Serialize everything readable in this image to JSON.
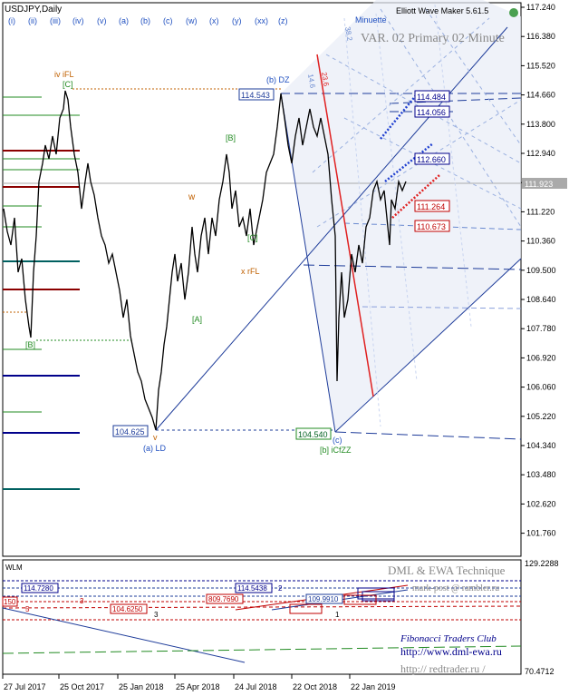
{
  "symbol_label": "USDJPY,Daily",
  "indicator_title": "Elliott Wave Maker 5.61.5",
  "var_label": "VAR. 02 Primary 02 Minute",
  "minuette_label": "Minuette",
  "wave_degree_buttons": [
    "(i)",
    "(ii)",
    "(iii)",
    "(iv)",
    "(v)",
    "(a)",
    "(b)",
    "(c)",
    "(w)",
    "(x)",
    "(y)",
    "(xx)",
    "(z)"
  ],
  "price_axis": [
    "117.240",
    "116.380",
    "115.520",
    "114.660",
    "113.800",
    "112.940",
    "112.080",
    "111.220",
    "110.360",
    "109.500",
    "108.640",
    "107.780",
    "106.920",
    "106.060",
    "105.220",
    "104.340",
    "103.480",
    "102.620",
    "101.760"
  ],
  "current_price": "111.923",
  "date_axis": [
    "27 Jul 2017",
    "25 Oct 2017",
    "25 Jan 2018",
    "25 Apr 2018",
    "24 Jul 2018",
    "22 Oct 2018",
    "22 Jan 2019"
  ],
  "wave_labels": {
    "iv_ifl": "iv iFL",
    "c_top": "[C]",
    "b_dz": "(b) DZ",
    "w": "w",
    "b_green": "[B]",
    "c_green": "[C]",
    "x_rfl": "x rFL",
    "a_green": "[A]",
    "b_left": "[B]",
    "v": "v",
    "a_ld": "(a) LD",
    "c_bottom": "(c)",
    "b_icfzz": "[b] iCfZZ"
  },
  "price_boxes": {
    "p114_543": "114.543",
    "p104_625": "104.625",
    "p104_540": "104.540",
    "p114_484": "114.484",
    "p114_056": "114.056",
    "p112_660": "112.660",
    "p111_264": "111.264",
    "p110_673": "110.673"
  },
  "channel_labels": [
    "23.6",
    "38.2",
    "14.6"
  ],
  "wlm": {
    "title": "WLM",
    "axis": [
      "129.2288",
      "70.4712"
    ],
    "header": "DML & EWA Technique",
    "email": "mark-post @ rambler.ru",
    "club": "Fibonacci    Traders    Club",
    "url1": "http://www.dml-ewa.ru",
    "url2": "http:// redtrader.ru /",
    "boxes": [
      "114.7280",
      "114.5438",
      "109.9910",
      "809.7690",
      "104.6250",
      "150"
    ],
    "small_marks": [
      "3",
      "5",
      "3",
      "2",
      "1"
    ]
  },
  "colors": {
    "up_green": "#228b22",
    "dark_red": "#8b0000",
    "navy": "#00008b",
    "teal": "#006060",
    "blue_line": "#1e3c9a",
    "red_line": "#e02020",
    "orange": "#c06000"
  }
}
